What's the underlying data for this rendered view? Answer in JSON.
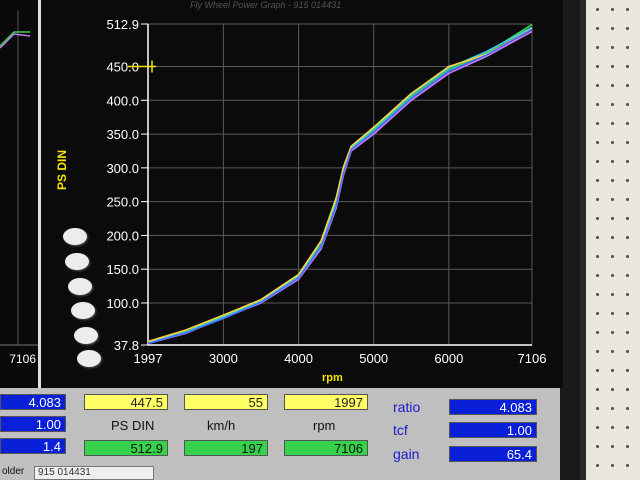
{
  "window": {
    "title": "Fly Wheel Power Graph - 915 014431"
  },
  "left_panel": {
    "x_max_label": "7106"
  },
  "chart_data": {
    "type": "line",
    "title": "",
    "xlabel": "rpm",
    "ylabel": "PS DIN",
    "xlim": [
      1997,
      7106
    ],
    "ylim": [
      37.8,
      512.9
    ],
    "x_ticks": [
      "1997",
      "3000",
      "4000",
      "5000",
      "6000",
      "7106"
    ],
    "y_ticks": [
      "37.8",
      "100.0",
      "150.0",
      "200.0",
      "250.0",
      "300.0",
      "350.0",
      "400.0",
      "450.0",
      "512.9"
    ],
    "marker_value": 450.0,
    "series": [
      {
        "color": "#c87cff",
        "x": [
          1997,
          2500,
          3000,
          3500,
          4000,
          4300,
          4500,
          4600,
          4700,
          5000,
          5500,
          6000,
          6500,
          7106
        ],
        "y": [
          40,
          55,
          78,
          100,
          135,
          180,
          240,
          290,
          325,
          350,
          400,
          440,
          465,
          502
        ]
      },
      {
        "color": "#3ad24a",
        "x": [
          1997,
          2500,
          3000,
          3500,
          4000,
          4300,
          4500,
          4600,
          4700,
          5000,
          5500,
          6000,
          6500,
          7106
        ],
        "y": [
          42,
          58,
          80,
          103,
          138,
          185,
          245,
          295,
          328,
          355,
          405,
          445,
          470,
          512
        ]
      },
      {
        "color": "#2fd0e8",
        "x": [
          1997,
          2500,
          3000,
          3500,
          4000,
          4300,
          4500,
          4600,
          4700,
          5000,
          5500,
          6000,
          6500,
          7106
        ],
        "y": [
          41,
          57,
          79,
          102,
          140,
          190,
          250,
          300,
          330,
          358,
          408,
          448,
          472,
          508
        ]
      },
      {
        "color": "#ffd23a",
        "x": [
          1997,
          2500,
          3000,
          3500,
          4000,
          4300,
          4500,
          4600,
          4700,
          5000,
          5500,
          6000,
          6500,
          7106
        ],
        "y": [
          43,
          60,
          82,
          105,
          142,
          192,
          255,
          302,
          332,
          360,
          410,
          450,
          468,
          506
        ]
      },
      {
        "color": "#4a6cff",
        "x": [
          1997,
          2500,
          3000,
          3500,
          4000,
          4300,
          4500,
          4600,
          4700,
          5000,
          5500,
          6000,
          6500,
          7106
        ],
        "y": [
          40,
          56,
          77,
          101,
          137,
          183,
          243,
          293,
          327,
          353,
          403,
          443,
          467,
          505
        ]
      }
    ]
  },
  "readout": {
    "row1": {
      "ps": "447.5",
      "kmh": "55",
      "rpm": "1997"
    },
    "units": {
      "ps": "PS DIN",
      "kmh": "km/h",
      "rpm": "rpm"
    },
    "row2": {
      "ps": "512.9",
      "kmh": "197",
      "rpm": "7106"
    },
    "params": [
      {
        "label": "ratio",
        "value": "4.083"
      },
      {
        "label": "tcf",
        "value": "1.00"
      },
      {
        "label": "gain",
        "value": "65.4"
      }
    ],
    "left_values": [
      "4.083",
      "1.00",
      "1.4"
    ]
  },
  "footer": {
    "folder_label": "older",
    "folder_value": "915 014431"
  }
}
